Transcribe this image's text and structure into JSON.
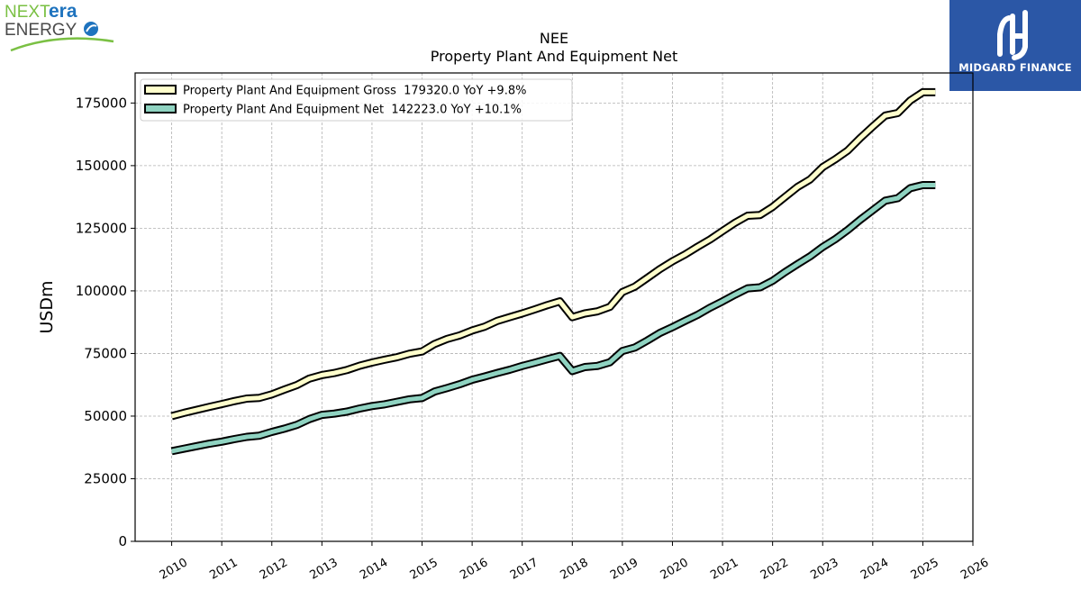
{
  "logos": {
    "left": {
      "line1_a": "NEXT",
      "line1_b": "era",
      "line2": "ENERGY"
    },
    "right": {
      "text": "MIDGARD FINANCE"
    }
  },
  "chart_data": {
    "type": "line",
    "title": "NEE",
    "subtitle": "Property Plant And Equipment Net",
    "xlabel": "",
    "ylabel": "USDm",
    "xlim": [
      2009.27,
      2026.0
    ],
    "ylim": [
      0,
      187000
    ],
    "yticks": [
      0,
      25000,
      50000,
      75000,
      100000,
      125000,
      150000,
      175000
    ],
    "xticks": [
      2010,
      2011,
      2012,
      2013,
      2014,
      2015,
      2016,
      2017,
      2018,
      2019,
      2020,
      2021,
      2022,
      2023,
      2024,
      2025,
      2026
    ],
    "grid": true,
    "legend_position": "top-left",
    "series": [
      {
        "name": "Property Plant And Equipment Gross  179320.0 YoY +9.8%",
        "color": "#ffffcc",
        "x": [
          2010.0,
          2010.25,
          2010.5,
          2010.75,
          2011.0,
          2011.25,
          2011.5,
          2011.75,
          2012.0,
          2012.25,
          2012.5,
          2012.75,
          2013.0,
          2013.25,
          2013.5,
          2013.75,
          2014.0,
          2014.25,
          2014.5,
          2014.75,
          2015.0,
          2015.25,
          2015.5,
          2015.75,
          2016.0,
          2016.25,
          2016.5,
          2016.75,
          2017.0,
          2017.25,
          2017.5,
          2017.75,
          2018.0,
          2018.25,
          2018.5,
          2018.75,
          2019.0,
          2019.25,
          2019.5,
          2019.75,
          2020.0,
          2020.25,
          2020.5,
          2020.75,
          2021.0,
          2021.25,
          2021.5,
          2021.75,
          2022.0,
          2022.25,
          2022.5,
          2022.75,
          2023.0,
          2023.25,
          2023.5,
          2023.75,
          2024.0,
          2024.25,
          2024.5,
          2024.75,
          2025.0,
          2025.25
        ],
        "values": [
          50000,
          51300,
          52500,
          53700,
          54800,
          56000,
          57000,
          57300,
          58700,
          60600,
          62400,
          65000,
          66400,
          67200,
          68400,
          70100,
          71400,
          72500,
          73500,
          74900,
          75800,
          78800,
          80800,
          82200,
          84200,
          85700,
          88000,
          89500,
          91000,
          92600,
          94300,
          95800,
          89500,
          91000,
          91800,
          93600,
          99500,
          101700,
          105200,
          108700,
          111800,
          114500,
          117600,
          120500,
          123900,
          127200,
          130000,
          130300,
          133500,
          137500,
          141500,
          144500,
          149400,
          152500,
          156000,
          161000,
          165600,
          170000,
          171000,
          176000,
          179320,
          179320
        ]
      },
      {
        "name": "Property Plant And Equipment Net  142223.0 YoY +10.1%",
        "color": "#8fd3c1",
        "x": [
          2010.0,
          2010.25,
          2010.5,
          2010.75,
          2011.0,
          2011.25,
          2011.5,
          2011.75,
          2012.0,
          2012.25,
          2012.5,
          2012.75,
          2013.0,
          2013.25,
          2013.5,
          2013.75,
          2014.0,
          2014.25,
          2014.5,
          2014.75,
          2015.0,
          2015.25,
          2015.5,
          2015.75,
          2016.0,
          2016.25,
          2016.5,
          2016.75,
          2017.0,
          2017.25,
          2017.5,
          2017.75,
          2018.0,
          2018.25,
          2018.5,
          2018.75,
          2019.0,
          2019.25,
          2019.5,
          2019.75,
          2020.0,
          2020.25,
          2020.5,
          2020.75,
          2021.0,
          2021.25,
          2021.5,
          2021.75,
          2022.0,
          2022.25,
          2022.5,
          2022.75,
          2023.0,
          2023.25,
          2023.5,
          2023.75,
          2024.0,
          2024.25,
          2024.5,
          2024.75,
          2025.0,
          2025.25
        ],
        "values": [
          36000,
          37000,
          38000,
          39000,
          39800,
          40800,
          41700,
          42200,
          43700,
          45000,
          46500,
          48800,
          50500,
          51000,
          51800,
          53000,
          54000,
          54700,
          55700,
          56700,
          57200,
          59800,
          61200,
          62700,
          64500,
          65800,
          67200,
          68500,
          70000,
          71300,
          72700,
          74000,
          68000,
          69600,
          70000,
          71500,
          76000,
          77400,
          80200,
          83200,
          85500,
          88000,
          90400,
          93300,
          95800,
          98500,
          101000,
          101400,
          104000,
          107500,
          110700,
          113800,
          117500,
          120600,
          124300,
          128400,
          132200,
          136000,
          137000,
          141000,
          142223,
          142223
        ]
      }
    ]
  }
}
